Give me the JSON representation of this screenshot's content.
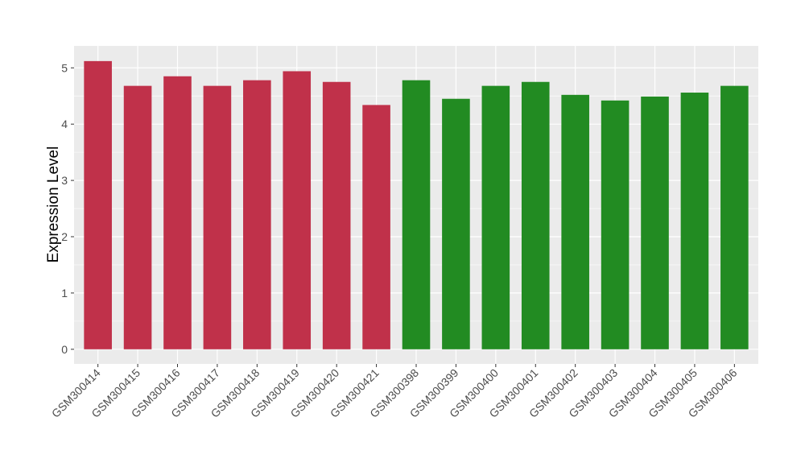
{
  "chart_data": {
    "type": "bar",
    "title": "",
    "xlabel": "",
    "ylabel": "Expression Level",
    "ylim": [
      -0.26,
      5.39
    ],
    "yticks": [
      0,
      1,
      2,
      3,
      4,
      5
    ],
    "grid": true,
    "categories": [
      "GSM300414",
      "GSM300415",
      "GSM300416",
      "GSM300417",
      "GSM300418",
      "GSM300419",
      "GSM300420",
      "GSM300421",
      "GSM300398",
      "GSM300399",
      "GSM300400",
      "GSM300401",
      "GSM300402",
      "GSM300403",
      "GSM300404",
      "GSM300405",
      "GSM300406"
    ],
    "values": [
      5.12,
      4.68,
      4.85,
      4.68,
      4.78,
      4.94,
      4.75,
      4.34,
      4.78,
      4.45,
      4.68,
      4.75,
      4.52,
      4.42,
      4.49,
      4.56,
      4.68
    ],
    "bar_colors": [
      "#c0314a",
      "#c0314a",
      "#c0314a",
      "#c0314a",
      "#c0314a",
      "#c0314a",
      "#c0314a",
      "#c0314a",
      "#228b22",
      "#228b22",
      "#228b22",
      "#228b22",
      "#228b22",
      "#228b22",
      "#228b22",
      "#228b22",
      "#228b22"
    ],
    "panel_background": "#ebebeb",
    "legend": "none"
  }
}
